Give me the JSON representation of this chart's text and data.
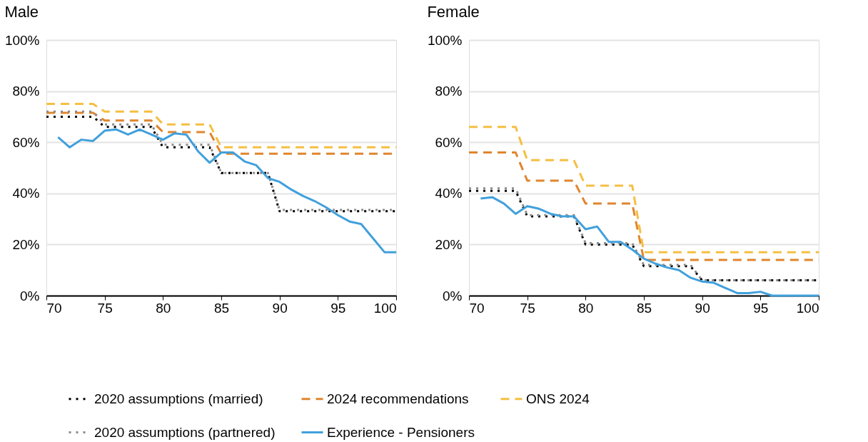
{
  "chart_data": [
    {
      "type": "line",
      "title": "Male",
      "legend": "bottom",
      "grid": "y",
      "x": [
        70,
        71,
        72,
        73,
        74,
        75,
        76,
        77,
        78,
        79,
        80,
        81,
        82,
        83,
        84,
        85,
        86,
        87,
        88,
        89,
        90,
        91,
        92,
        93,
        94,
        95,
        96,
        97,
        98,
        99,
        100
      ],
      "xlim": [
        70,
        100
      ],
      "xticks": [
        70,
        75,
        80,
        85,
        90,
        95,
        100
      ],
      "ylim": [
        0,
        100
      ],
      "yticks": [
        {
          "value": 0,
          "label": "0%"
        },
        {
          "value": 20,
          "label": "20%"
        },
        {
          "value": 40,
          "label": "40%"
        },
        {
          "value": 60,
          "label": "60%"
        },
        {
          "value": 80,
          "label": "80%"
        },
        {
          "value": 100,
          "label": "100%"
        }
      ],
      "series": [
        {
          "name": "2020 assumptions (married)",
          "color": "#000000",
          "line_style": "dotted",
          "values": [
            70,
            70,
            70,
            70,
            70,
            66,
            66,
            66,
            66,
            66,
            58,
            58,
            58,
            58,
            58,
            48,
            48,
            48,
            48,
            48,
            33,
            33,
            33,
            33,
            33,
            33,
            33,
            33,
            33,
            33,
            33
          ]
        },
        {
          "name": "2024 recommendations",
          "color": "#e0852e",
          "line_style": "dashed",
          "values": [
            71.5,
            71.5,
            71.5,
            71.5,
            71.5,
            68.5,
            68.5,
            68.5,
            68.5,
            68.5,
            64,
            64,
            64,
            64,
            64,
            55.5,
            55.5,
            55.5,
            55.5,
            55.5,
            55.5,
            55.5,
            55.5,
            55.5,
            55.5,
            55.5,
            55.5,
            55.5,
            55.5,
            55.5,
            55.5
          ]
        },
        {
          "name": "ONS 2024",
          "color": "#f5bf42",
          "line_style": "dashed",
          "values": [
            75,
            75,
            75,
            75,
            75,
            72,
            72,
            72,
            72,
            72,
            67,
            67,
            67,
            67,
            67,
            58,
            58,
            58,
            58,
            58,
            58,
            58,
            58,
            58,
            58,
            58,
            58,
            58,
            58,
            58,
            58
          ]
        },
        {
          "name": "2020 assumptions (partnered)",
          "color": "#8c8c8c",
          "line_style": "dotted",
          "values": [
            72,
            72,
            72,
            72,
            72,
            67,
            67,
            67,
            67,
            67,
            59,
            59,
            59,
            59,
            59,
            48,
            48,
            48,
            48,
            48,
            33.5,
            33.5,
            33.5,
            33.5,
            33.5,
            33.5,
            33.5,
            33.5,
            33.5,
            33.5,
            33.5
          ]
        },
        {
          "name": "Experience - Pensioners",
          "color": "#41a0dc",
          "line_style": "solid",
          "x": [
            71,
            72,
            73,
            74,
            75,
            76,
            77,
            78,
            79,
            80,
            81,
            82,
            83,
            84,
            85,
            86,
            87,
            88,
            89,
            90,
            91,
            92,
            93,
            94,
            95,
            96,
            97,
            98,
            99,
            100
          ],
          "values": [
            62,
            58,
            61,
            60.5,
            64.5,
            65,
            63,
            65,
            63,
            61,
            63.5,
            63,
            56.5,
            52,
            56,
            56,
            52.5,
            51,
            46,
            44.5,
            41.5,
            39,
            37,
            34.5,
            31.5,
            29,
            28,
            22.5,
            17,
            17
          ]
        }
      ]
    },
    {
      "type": "line",
      "title": "Female",
      "legend": "bottom",
      "grid": "y",
      "x": [
        70,
        71,
        72,
        73,
        74,
        75,
        76,
        77,
        78,
        79,
        80,
        81,
        82,
        83,
        84,
        85,
        86,
        87,
        88,
        89,
        90,
        91,
        92,
        93,
        94,
        95,
        96,
        97,
        98,
        99,
        100
      ],
      "xlim": [
        70,
        100
      ],
      "xticks": [
        70,
        75,
        80,
        85,
        90,
        95,
        100
      ],
      "ylim": [
        0,
        100
      ],
      "yticks": [
        {
          "value": 0,
          "label": "0%"
        },
        {
          "value": 20,
          "label": "20%"
        },
        {
          "value": 40,
          "label": "40%"
        },
        {
          "value": 60,
          "label": "60%"
        },
        {
          "value": 80,
          "label": "80%"
        },
        {
          "value": 100,
          "label": "100%"
        }
      ],
      "series": [
        {
          "name": "2020 assumptions (married)",
          "color": "#000000",
          "line_style": "dotted",
          "values": [
            41,
            41,
            41,
            41,
            41,
            31,
            31,
            31,
            31,
            31,
            20,
            20,
            20,
            20,
            20,
            11.5,
            11.5,
            11.5,
            11.5,
            11.5,
            6,
            6,
            6,
            6,
            6,
            6,
            6,
            6,
            6,
            6,
            6
          ]
        },
        {
          "name": "2024 recommendations",
          "color": "#e0852e",
          "line_style": "dashed",
          "values": [
            56,
            56,
            56,
            56,
            56,
            45,
            45,
            45,
            45,
            45,
            36,
            36,
            36,
            36,
            36,
            14,
            14,
            14,
            14,
            14,
            14,
            14,
            14,
            14,
            14,
            14,
            14,
            14,
            14,
            14,
            14
          ]
        },
        {
          "name": "ONS 2024",
          "color": "#f5bf42",
          "line_style": "dashed",
          "values": [
            66,
            66,
            66,
            66,
            66,
            53,
            53,
            53,
            53,
            53,
            43,
            43,
            43,
            43,
            43,
            17,
            17,
            17,
            17,
            17,
            17,
            17,
            17,
            17,
            17,
            17,
            17,
            17,
            17,
            17,
            17
          ]
        },
        {
          "name": "2020 assumptions (partnered)",
          "color": "#8c8c8c",
          "line_style": "dotted",
          "values": [
            42,
            42,
            42,
            42,
            42,
            31.5,
            31.5,
            31.5,
            31.5,
            31.5,
            20.5,
            20.5,
            20.5,
            20.5,
            20.5,
            12,
            12,
            12,
            12,
            12,
            6,
            6,
            6,
            6,
            6,
            6,
            6,
            6,
            6,
            6,
            6
          ]
        },
        {
          "name": "Experience - Pensioners",
          "color": "#41a0dc",
          "line_style": "solid",
          "x": [
            71,
            72,
            73,
            74,
            75,
            76,
            77,
            78,
            79,
            80,
            81,
            82,
            83,
            84,
            85,
            86,
            87,
            88,
            89,
            90,
            91,
            92,
            93,
            94,
            95,
            96,
            97,
            98,
            99,
            100
          ],
          "values": [
            38,
            38.5,
            36,
            32,
            35,
            34,
            32,
            31,
            31,
            26,
            27,
            21,
            21,
            18,
            14.5,
            12.5,
            11,
            10,
            7,
            5.5,
            5,
            3,
            1,
            1,
            1.5,
            0,
            0,
            0,
            0,
            0
          ]
        }
      ]
    }
  ]
}
